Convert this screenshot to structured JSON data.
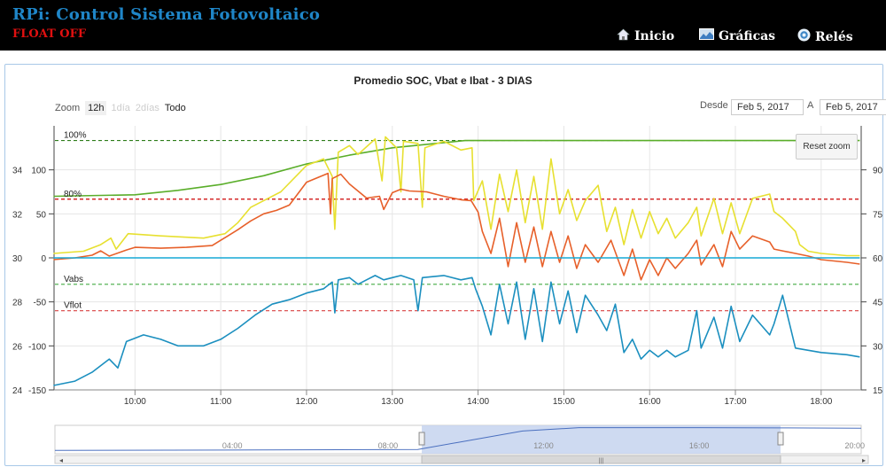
{
  "app": {
    "title": "RPi: Control Sistema Fotovoltaico",
    "status": "FLOAT OFF",
    "nav": [
      {
        "label": "Inicio",
        "icon": "home-icon"
      },
      {
        "label": "Gráficas",
        "icon": "chart-image-icon"
      },
      {
        "label": "Relés",
        "icon": "power-circle-icon"
      }
    ]
  },
  "chart_controls": {
    "zoom_label": "Zoom",
    "zoom_buttons": [
      "12h",
      "1día",
      "2días",
      "Todo"
    ],
    "from_label": "Desde",
    "from_value": "Feb 5, 2017",
    "to_label": "A",
    "to_value": "Feb 5, 2017",
    "reset_zoom": "Reset zoom"
  },
  "chart_data": {
    "type": "line",
    "title": "Promedio SOC, Vbat e Ibat - 3 DIAS",
    "x_ticks": [
      "10:00",
      "11:00",
      "12:00",
      "13:00",
      "14:00",
      "15:00",
      "16:00",
      "17:00",
      "18:00"
    ],
    "x_range": [
      "09:04",
      "18:28"
    ],
    "y_left_outer": {
      "ticks": [
        24,
        26,
        28,
        30,
        32,
        34
      ],
      "range": [
        24,
        36
      ]
    },
    "y_left_inner": {
      "ticks": [
        -150,
        -100,
        -50,
        0,
        50,
        100
      ],
      "range": [
        -150,
        150
      ]
    },
    "y_right": {
      "ticks": [
        15,
        30,
        45,
        60,
        75,
        90
      ],
      "range": [
        15,
        105
      ]
    },
    "plot_lines": [
      {
        "label": "100%",
        "value": 100,
        "axis": "soc",
        "color": "#2e7d1a"
      },
      {
        "label": "80%",
        "value": 80,
        "axis": "soc",
        "color": "#cc0000"
      },
      {
        "label": "Vabs",
        "value": 28.8,
        "axis": "vbat",
        "color": "#44aa44"
      },
      {
        "label": "Vflot",
        "value": 27.6,
        "axis": "vbat",
        "color": "#dd5555"
      }
    ],
    "series": [
      {
        "color": "#5aae2a",
        "axis": "soc",
        "points": [
          [
            9.05,
            81
          ],
          [
            10,
            81.5
          ],
          [
            10.5,
            83
          ],
          [
            11,
            85
          ],
          [
            11.5,
            88
          ],
          [
            12,
            92
          ],
          [
            12.5,
            95
          ],
          [
            13,
            97.5
          ],
          [
            13.5,
            99
          ],
          [
            13.85,
            100
          ],
          [
            14,
            100
          ],
          [
            15,
            100
          ],
          [
            16,
            100
          ],
          [
            17,
            100
          ],
          [
            18,
            100
          ],
          [
            18.45,
            100
          ]
        ]
      },
      {
        "color": "#e7e030",
        "axis": "vbat",
        "points": [
          [
            9.05,
            30.2
          ],
          [
            9.4,
            30.3
          ],
          [
            9.6,
            30.6
          ],
          [
            9.72,
            30.9
          ],
          [
            9.78,
            30.4
          ],
          [
            9.92,
            31.1
          ],
          [
            10.3,
            31.0
          ],
          [
            10.8,
            30.9
          ],
          [
            11.05,
            31.1
          ],
          [
            11.2,
            31.6
          ],
          [
            11.35,
            32.3
          ],
          [
            11.5,
            32.6
          ],
          [
            11.7,
            33.0
          ],
          [
            12.0,
            34.2
          ],
          [
            12.2,
            34.5
          ],
          [
            12.3,
            33.7
          ],
          [
            12.33,
            31.3
          ],
          [
            12.37,
            34.8
          ],
          [
            12.5,
            35.1
          ],
          [
            12.6,
            34.7
          ],
          [
            12.8,
            35.4
          ],
          [
            12.88,
            33.5
          ],
          [
            12.92,
            35.5
          ],
          [
            13.05,
            35.0
          ],
          [
            13.1,
            33.0
          ],
          [
            13.13,
            35.3
          ],
          [
            13.3,
            35.2
          ],
          [
            13.35,
            32.3
          ],
          [
            13.38,
            35.0
          ],
          [
            13.6,
            35.3
          ],
          [
            13.8,
            34.9
          ],
          [
            13.93,
            35.0
          ],
          [
            13.95,
            32.6
          ],
          [
            14.05,
            33.5
          ],
          [
            14.15,
            31.3
          ],
          [
            14.25,
            33.8
          ],
          [
            14.35,
            32.1
          ],
          [
            14.45,
            34.0
          ],
          [
            14.55,
            31.6
          ],
          [
            14.65,
            33.7
          ],
          [
            14.75,
            31.3
          ],
          [
            14.85,
            34.5
          ],
          [
            14.95,
            32.0
          ],
          [
            15.05,
            33.1
          ],
          [
            15.15,
            31.7
          ],
          [
            15.25,
            32.6
          ],
          [
            15.4,
            33.3
          ],
          [
            15.5,
            31.2
          ],
          [
            15.6,
            32.3
          ],
          [
            15.7,
            30.6
          ],
          [
            15.8,
            32.2
          ],
          [
            15.9,
            30.9
          ],
          [
            16.0,
            32.1
          ],
          [
            16.1,
            31.1
          ],
          [
            16.2,
            31.8
          ],
          [
            16.3,
            30.9
          ],
          [
            16.45,
            31.6
          ],
          [
            16.55,
            32.3
          ],
          [
            16.6,
            31.0
          ],
          [
            16.75,
            32.7
          ],
          [
            16.85,
            31.1
          ],
          [
            16.95,
            32.5
          ],
          [
            17.05,
            31.1
          ],
          [
            17.2,
            32.7
          ],
          [
            17.4,
            32.9
          ],
          [
            17.45,
            32.1
          ],
          [
            17.55,
            31.8
          ],
          [
            17.7,
            31.2
          ],
          [
            17.75,
            30.6
          ],
          [
            17.85,
            30.3
          ],
          [
            18.0,
            30.2
          ],
          [
            18.3,
            30.1
          ],
          [
            18.45,
            30.1
          ]
        ]
      },
      {
        "color": "#e7602a",
        "axis": "ibat",
        "points": [
          [
            9.05,
            -2
          ],
          [
            9.3,
            0
          ],
          [
            9.5,
            3
          ],
          [
            9.6,
            8
          ],
          [
            9.7,
            2
          ],
          [
            9.9,
            9
          ],
          [
            10.0,
            12
          ],
          [
            10.3,
            11
          ],
          [
            10.6,
            12
          ],
          [
            10.9,
            14
          ],
          [
            11.0,
            20
          ],
          [
            11.2,
            32
          ],
          [
            11.35,
            42
          ],
          [
            11.5,
            50
          ],
          [
            11.65,
            54
          ],
          [
            11.8,
            60
          ],
          [
            12.0,
            86
          ],
          [
            12.15,
            92
          ],
          [
            12.25,
            96
          ],
          [
            12.28,
            50
          ],
          [
            12.3,
            90
          ],
          [
            12.4,
            95
          ],
          [
            12.5,
            84
          ],
          [
            12.7,
            68
          ],
          [
            12.85,
            70
          ],
          [
            12.9,
            55
          ],
          [
            13.0,
            74
          ],
          [
            13.1,
            78
          ],
          [
            13.2,
            76
          ],
          [
            13.4,
            75
          ],
          [
            13.6,
            70
          ],
          [
            13.8,
            66
          ],
          [
            13.92,
            65
          ],
          [
            14.0,
            52
          ],
          [
            14.05,
            30
          ],
          [
            14.15,
            5
          ],
          [
            14.25,
            45
          ],
          [
            14.35,
            -10
          ],
          [
            14.45,
            40
          ],
          [
            14.55,
            -5
          ],
          [
            14.65,
            35
          ],
          [
            14.75,
            -10
          ],
          [
            14.85,
            30
          ],
          [
            14.95,
            -5
          ],
          [
            15.05,
            25
          ],
          [
            15.15,
            -12
          ],
          [
            15.25,
            15
          ],
          [
            15.4,
            -5
          ],
          [
            15.55,
            20
          ],
          [
            15.7,
            -20
          ],
          [
            15.8,
            10
          ],
          [
            15.9,
            -25
          ],
          [
            16.0,
            -2
          ],
          [
            16.1,
            -20
          ],
          [
            16.2,
            0
          ],
          [
            16.3,
            -12
          ],
          [
            16.45,
            5
          ],
          [
            16.55,
            20
          ],
          [
            16.6,
            -8
          ],
          [
            16.75,
            15
          ],
          [
            16.85,
            -10
          ],
          [
            16.95,
            30
          ],
          [
            17.05,
            10
          ],
          [
            17.2,
            25
          ],
          [
            17.4,
            18
          ],
          [
            17.45,
            10
          ],
          [
            17.55,
            8
          ],
          [
            17.7,
            5
          ],
          [
            17.85,
            2
          ],
          [
            18.0,
            -2
          ],
          [
            18.3,
            -5
          ],
          [
            18.45,
            -7
          ]
        ]
      },
      {
        "color": "#16a9d6",
        "axis": "ibat",
        "points": [
          [
            9.05,
            0
          ],
          [
            18.45,
            0
          ]
        ]
      },
      {
        "color": "#1b8fbf",
        "axis": "vbat",
        "points": [
          [
            9.05,
            24.2
          ],
          [
            9.3,
            24.4
          ],
          [
            9.5,
            24.8
          ],
          [
            9.7,
            25.4
          ],
          [
            9.8,
            25.0
          ],
          [
            9.9,
            26.2
          ],
          [
            10.1,
            26.5
          ],
          [
            10.3,
            26.3
          ],
          [
            10.5,
            26.0
          ],
          [
            10.8,
            26.0
          ],
          [
            11.0,
            26.3
          ],
          [
            11.2,
            26.8
          ],
          [
            11.4,
            27.4
          ],
          [
            11.6,
            27.9
          ],
          [
            11.8,
            28.1
          ],
          [
            12.0,
            28.4
          ],
          [
            12.2,
            28.6
          ],
          [
            12.3,
            28.9
          ],
          [
            12.33,
            27.5
          ],
          [
            12.37,
            29.0
          ],
          [
            12.5,
            29.1
          ],
          [
            12.6,
            28.8
          ],
          [
            12.7,
            29.0
          ],
          [
            12.8,
            29.2
          ],
          [
            12.9,
            29.0
          ],
          [
            13.0,
            29.1
          ],
          [
            13.1,
            29.2
          ],
          [
            13.25,
            29.0
          ],
          [
            13.3,
            27.6
          ],
          [
            13.35,
            29.1
          ],
          [
            13.6,
            29.2
          ],
          [
            13.8,
            29.0
          ],
          [
            13.93,
            29.1
          ],
          [
            13.97,
            28.6
          ],
          [
            14.05,
            27.8
          ],
          [
            14.15,
            26.5
          ],
          [
            14.25,
            28.8
          ],
          [
            14.35,
            27.0
          ],
          [
            14.45,
            28.9
          ],
          [
            14.55,
            26.3
          ],
          [
            14.65,
            28.6
          ],
          [
            14.75,
            26.2
          ],
          [
            14.85,
            28.9
          ],
          [
            14.95,
            27.0
          ],
          [
            15.05,
            28.5
          ],
          [
            15.15,
            26.6
          ],
          [
            15.25,
            28.3
          ],
          [
            15.4,
            27.4
          ],
          [
            15.5,
            26.7
          ],
          [
            15.6,
            27.9
          ],
          [
            15.7,
            25.7
          ],
          [
            15.8,
            26.3
          ],
          [
            15.9,
            25.4
          ],
          [
            16.0,
            25.8
          ],
          [
            16.1,
            25.5
          ],
          [
            16.2,
            25.8
          ],
          [
            16.3,
            25.5
          ],
          [
            16.45,
            25.8
          ],
          [
            16.55,
            27.6
          ],
          [
            16.6,
            25.9
          ],
          [
            16.75,
            27.3
          ],
          [
            16.85,
            25.9
          ],
          [
            16.95,
            27.8
          ],
          [
            17.05,
            26.2
          ],
          [
            17.2,
            27.4
          ],
          [
            17.4,
            26.5
          ],
          [
            17.45,
            27.0
          ],
          [
            17.55,
            28.3
          ],
          [
            17.7,
            25.9
          ],
          [
            17.85,
            25.8
          ],
          [
            18.0,
            25.7
          ],
          [
            18.3,
            25.6
          ],
          [
            18.45,
            25.5
          ]
        ]
      }
    ],
    "navigator": {
      "ticks": [
        "04:00",
        "08:00",
        "12:00",
        "16:00",
        "20:00"
      ],
      "points": [
        [
          0.0,
          0.12
        ],
        [
          0.25,
          0.13
        ],
        [
          0.45,
          0.15
        ],
        [
          0.5,
          0.4
        ],
        [
          0.58,
          0.8
        ],
        [
          0.65,
          0.92
        ],
        [
          0.8,
          0.92
        ],
        [
          0.9,
          0.91
        ],
        [
          1.0,
          0.9
        ]
      ],
      "window": [
        0.455,
        0.9
      ]
    }
  }
}
